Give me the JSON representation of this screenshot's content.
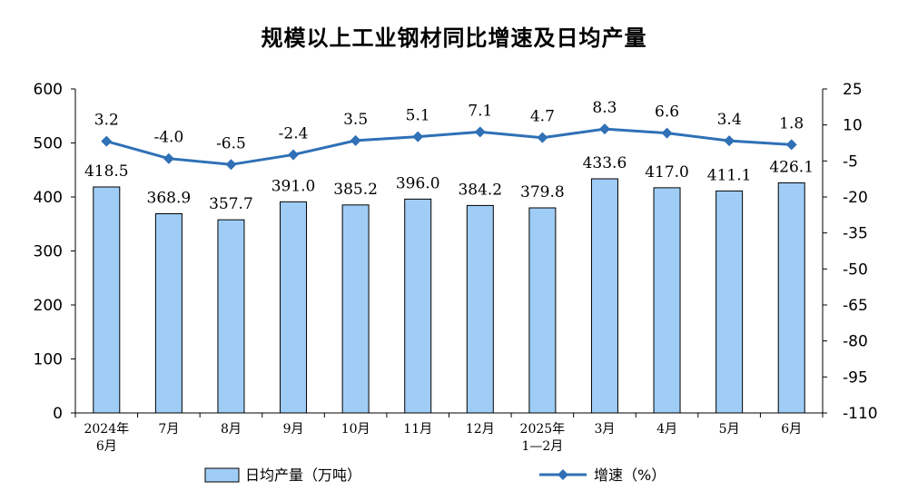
{
  "chart_data": {
    "type": "bar+line",
    "title": "规模以上工业钢材同比增速及日均产量",
    "categories": [
      [
        "2024年",
        "6月"
      ],
      [
        "7月"
      ],
      [
        "8月"
      ],
      [
        "9月"
      ],
      [
        "10月"
      ],
      [
        "11月"
      ],
      [
        "12月"
      ],
      [
        "2025年",
        "1—2月"
      ],
      [
        "3月"
      ],
      [
        "4月"
      ],
      [
        "5月"
      ],
      [
        "6月"
      ]
    ],
    "series": [
      {
        "name": "日均产量（万吨）",
        "type": "bar",
        "axis": "left",
        "color": "#9fcdf5",
        "values": [
          418.5,
          368.9,
          357.7,
          391.0,
          385.2,
          396.0,
          384.2,
          379.8,
          433.6,
          417.0,
          411.1,
          426.1
        ],
        "labels": [
          "418.5",
          "368.9",
          "357.7",
          "391.0",
          "385.2",
          "396.0",
          "384.2",
          "379.8",
          "433.6",
          "417.0",
          "411.1",
          "426.1"
        ]
      },
      {
        "name": "增速（%）",
        "type": "line",
        "axis": "right",
        "color": "#2f70b6",
        "values": [
          3.2,
          -4.0,
          -6.5,
          -2.4,
          3.5,
          5.1,
          7.1,
          4.7,
          8.3,
          6.6,
          3.4,
          1.8
        ],
        "labels": [
          "3.2",
          "-4.0",
          "-6.5",
          "-2.4",
          "3.5",
          "5.1",
          "7.1",
          "4.7",
          "8.3",
          "6.6",
          "3.4",
          "1.8"
        ]
      }
    ],
    "left_axis": {
      "min": 0,
      "max": 600,
      "ticks": [
        "0",
        "100",
        "200",
        "300",
        "400",
        "500",
        "600"
      ]
    },
    "right_axis": {
      "min": -110,
      "max": 25,
      "ticks": [
        "-110",
        "-95",
        "-80",
        "-65",
        "-50",
        "-35",
        "-20",
        "-5",
        "10",
        "25"
      ]
    },
    "grid": false,
    "legend_position": "bottom"
  }
}
